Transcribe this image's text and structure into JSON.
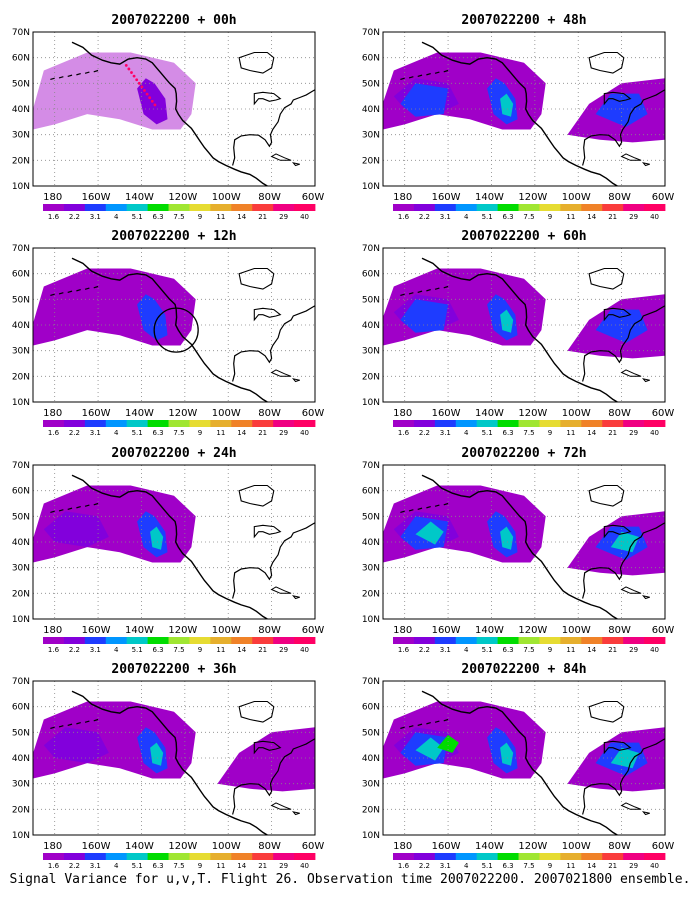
{
  "figure": {
    "caption": "Signal Variance for u,v,T. Flight 26. Observation time 2007022200. 2007021800 ensemble."
  },
  "map": {
    "lat_ticks": [
      "70N",
      "60N",
      "50N",
      "40N",
      "30N",
      "20N",
      "10N"
    ],
    "lon_ticks": [
      "180",
      "160W",
      "140W",
      "120W",
      "100W",
      "80W",
      "60W"
    ],
    "lon_range": [
      170,
      300
    ],
    "lat_range": [
      10,
      70
    ]
  },
  "colorbar": {
    "levels": [
      "1.6",
      "2.2",
      "3.1",
      "4",
      "5.1",
      "6.3",
      "7.5",
      "9",
      "11",
      "14",
      "21",
      "29",
      "40"
    ],
    "colors": [
      "#a000c8",
      "#8200dc",
      "#1e3cff",
      "#0096ff",
      "#00c8c8",
      "#00dc00",
      "#a0e632",
      "#e6dc32",
      "#e6af2d",
      "#f08228",
      "#fa3c3c",
      "#f00082",
      "#ff0064"
    ]
  },
  "panels": [
    {
      "title": "2007022200 + 00h",
      "lead": 0
    },
    {
      "title": "2007022200 + 48h",
      "lead": 48
    },
    {
      "title": "2007022200 + 12h",
      "lead": 12
    },
    {
      "title": "2007022200 + 60h",
      "lead": 60
    },
    {
      "title": "2007022200 + 24h",
      "lead": 24
    },
    {
      "title": "2007022200 + 72h",
      "lead": 72
    },
    {
      "title": "2007022200 + 36h",
      "lead": 36
    },
    {
      "title": "2007022200 + 84h",
      "lead": 84
    }
  ]
}
